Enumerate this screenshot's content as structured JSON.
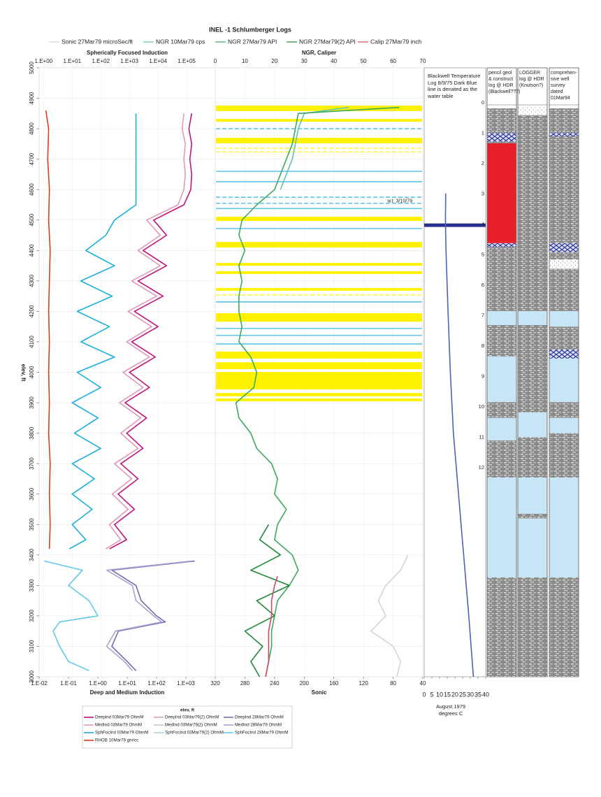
{
  "chart_data": {
    "type": "well-log",
    "title": "INEL -1 Schlumberger Logs",
    "y_label": "elev, ft",
    "ylim": [
      3000,
      5000
    ],
    "yticks": [
      3000,
      3100,
      3200,
      3300,
      3400,
      3500,
      3600,
      3700,
      3800,
      3900,
      4000,
      4100,
      4200,
      4300,
      4400,
      4500,
      4600,
      4700,
      4800,
      4900,
      5000
    ],
    "grid": true,
    "legend_top": [
      {
        "name": "Sonic 27Mar79 microSec/ft",
        "color": "#d4d4d4",
        "track": 1,
        "axis": "bottom",
        "depths": [
          3400,
          3350,
          3300,
          3250,
          3200,
          3150,
          3100,
          3050,
          3000
        ],
        "values": [
          60,
          70,
          90,
          100,
          90,
          110,
          80,
          70,
          75
        ]
      },
      {
        "name": "NGR 10Mar79 cps",
        "color": "#5fc2b4",
        "track": 1,
        "axis": "top",
        "depths": [
          4870,
          4850,
          4800,
          4750,
          4700,
          4650,
          4600
        ],
        "values": [
          45,
          30,
          28,
          27,
          26,
          24,
          22
        ]
      },
      {
        "name": "NGR 27Mar79 API",
        "color": "#3caa5a",
        "track": 1,
        "axis": "top",
        "depths": [
          4870,
          4850,
          4800,
          4750,
          4700,
          4650,
          4600,
          4550,
          4500,
          4450,
          4400,
          4350,
          4300,
          4250,
          4200,
          4150,
          4100,
          4050,
          4000,
          3950,
          3900,
          3850,
          3800,
          3750,
          3700,
          3650,
          3600,
          3550,
          3500,
          3450,
          3400,
          3350,
          3300,
          3250,
          3200,
          3150,
          3100,
          3050,
          3000
        ],
        "values": [
          62,
          28,
          27,
          26,
          24,
          22,
          20,
          14,
          9,
          8,
          10,
          8,
          9,
          8,
          8,
          9,
          8,
          12,
          14,
          13,
          7,
          8,
          12,
          14,
          19,
          21,
          20,
          24,
          21,
          20,
          26,
          28,
          25,
          21,
          20,
          19,
          19,
          18,
          17
        ]
      },
      {
        "name": "NGR 27Mar79(2) API",
        "color": "#1e8a3a",
        "track": 1,
        "axis": "top",
        "depths": [
          3500,
          3450,
          3400,
          3350,
          3300,
          3250,
          3200,
          3150,
          3100,
          3050,
          3000
        ],
        "values": [
          18,
          15,
          22,
          12,
          25,
          14,
          20,
          10,
          16,
          12,
          15
        ]
      },
      {
        "name": "Calip 27Mar79 inch",
        "color": "#cc4a60",
        "track": 1,
        "axis": "top",
        "depths": [
          3330,
          3300,
          3250,
          3200,
          3150,
          3100,
          3050,
          3000
        ],
        "values": [
          21,
          20,
          19,
          19,
          18,
          18,
          18,
          17
        ]
      }
    ],
    "legend_bottom_title": "elev, ft",
    "legend_bottom": [
      {
        "name": "Deepind 03Mar79 OhmM",
        "color": "#c0147c",
        "track": 0,
        "axis": "top",
        "depths": [
          4850,
          4800,
          4750,
          4700,
          4650,
          4600,
          4550,
          4500,
          4450,
          4400,
          4350,
          4300,
          4250,
          4200,
          4150,
          4100,
          4050,
          4000,
          3950,
          3900,
          3850,
          3800,
          3750,
          3700,
          3650,
          3600,
          3550,
          3500,
          3450,
          3420
        ],
        "values": [
          150000,
          120000,
          150000,
          130000,
          150000,
          140000,
          80000,
          7000,
          20000,
          3000,
          20000,
          2000,
          15000,
          1500,
          10000,
          1200,
          8000,
          1000,
          5000,
          700,
          4000,
          800,
          3000,
          500,
          2000,
          400,
          1500,
          300,
          800,
          200
        ]
      },
      {
        "name": "MedInd 03Mar79 OhmM",
        "color": "#e098b8",
        "track": 0,
        "axis": "top",
        "depths": [
          4850,
          4800,
          4750,
          4700,
          4650,
          4600,
          4550,
          4500,
          4450,
          4400,
          4350,
          4300,
          4250,
          4200,
          4150,
          4100,
          4050,
          4000,
          3950,
          3900,
          3850,
          3800,
          3750,
          3700,
          3650,
          3600,
          3550,
          3500,
          3450,
          3420
        ],
        "values": [
          80000,
          70000,
          90000,
          80000,
          90000,
          80000,
          50000,
          4000,
          12000,
          2000,
          12000,
          1200,
          9000,
          900,
          6000,
          800,
          5000,
          600,
          3000,
          450,
          2500,
          500,
          2000,
          300,
          1200,
          250,
          900,
          200,
          500,
          150
        ]
      },
      {
        "name": "SphFocInd 03Mar79 OhmM",
        "color": "#1ab0dc",
        "track": 0,
        "axis": "top",
        "depths": [
          4850,
          4800,
          4750,
          4700,
          4650,
          4600,
          4550,
          4500,
          4450,
          4400,
          4350,
          4300,
          4250,
          4200,
          4150,
          4100,
          4050,
          4000,
          3950,
          3900,
          3850,
          3800,
          3750,
          3700,
          3650,
          3600,
          3550,
          3500,
          3450,
          3420
        ],
        "values": [
          1700,
          1700,
          1700,
          1700,
          1700,
          1700,
          1700,
          300,
          150,
          30,
          300,
          20,
          250,
          15,
          200,
          20,
          300,
          15,
          100,
          10,
          80,
          12,
          100,
          10,
          60,
          10,
          50,
          10,
          30,
          8
        ]
      },
      {
        "name": "RHOB 10Mar79 gm/cc",
        "color": "#d04020",
        "track": 0,
        "axis": "top",
        "depths": [
          4860,
          4800,
          4700,
          4600,
          4500,
          4400,
          4300,
          4200,
          4100,
          4000,
          3900,
          3800,
          3700,
          3600,
          3500,
          3420
        ],
        "values": [
          1.2,
          1.5,
          1.4,
          1.6,
          1.5,
          1.7,
          1.6,
          1.5,
          1.6,
          1.5,
          1.6,
          1.5,
          1.7,
          1.6,
          1.7,
          1.6
        ]
      },
      {
        "name": "DeepInd 03Mar79(2) OhmM",
        "color": "#d8a0b4"
      },
      {
        "name": "MedInd 03Mar79(2) OhmM",
        "color": "#c4c4cc"
      },
      {
        "name": "SphFocInd 03Mar79(2) OhmM",
        "color": "#a8d4e4"
      },
      {
        "name": "DeepInd 28Mar79 OhmM",
        "color": "#7070b0",
        "track": 0,
        "axis": "bottom",
        "depths": [
          3380,
          3350,
          3300,
          3250,
          3200,
          3180,
          3150,
          3100,
          3050,
          3020
        ],
        "values": [
          2000,
          3,
          20,
          30,
          100,
          200,
          5,
          3,
          10,
          20
        ]
      },
      {
        "name": "MedInd 28Mar79 OhmM",
        "color": "#b0a0d0",
        "track": 0,
        "axis": "bottom",
        "depths": [
          3380,
          3350,
          3300,
          3250,
          3200,
          3180,
          3150,
          3100,
          3050,
          3020
        ],
        "values": [
          1500,
          2,
          15,
          20,
          80,
          150,
          4,
          2,
          8,
          15
        ]
      },
      {
        "name": "SphFocInd 28Mar79 OhmM",
        "color": "#60c8e8",
        "track": 0,
        "axis": "bottom",
        "depths": [
          3380,
          3350,
          3300,
          3250,
          3200,
          3180,
          3150,
          3100,
          3050,
          3020
        ],
        "values": [
          0.015,
          0.3,
          0.1,
          0.5,
          1,
          0.05,
          0.03,
          0.05,
          0.1,
          0.5
        ]
      }
    ],
    "tracks": [
      {
        "top_label": "Spherically Focused Induction",
        "top_log": true,
        "top_xlim": [
          0.7,
          1000000
        ],
        "top_xticks": [
          {
            "value": 1,
            "label": "1.E+00"
          },
          {
            "value": 10,
            "label": "1.E+01"
          },
          {
            "value": 100,
            "label": "1.E+02"
          },
          {
            "value": 1000,
            "label": "1.E+03"
          },
          {
            "value": 10000,
            "label": "1.E+04"
          },
          {
            "value": 100000,
            "label": "1.E+05"
          }
        ],
        "bottom_label": "Deep and Medium Induction",
        "bottom_log": true,
        "bottom_xlim": [
          0.01,
          10000
        ],
        "bottom_xticks": [
          {
            "value": 0.01,
            "label": "1.E-02"
          },
          {
            "value": 0.1,
            "label": "1.E-01"
          },
          {
            "value": 1,
            "label": "1.E+00"
          },
          {
            "value": 10,
            "label": "1.E+01"
          },
          {
            "value": 100,
            "label": "1.E+02"
          },
          {
            "value": 1000,
            "label": "1.E+03"
          }
        ]
      },
      {
        "top_label": "NGR, Caliper",
        "top_xlim": [
          0,
          70
        ],
        "top_xticks": [
          0,
          10,
          20,
          30,
          40,
          50,
          60,
          70
        ],
        "bottom_label": "Sonic",
        "bottom_xlim": [
          320,
          40
        ],
        "bottom_xticks": [
          320,
          280,
          240,
          200,
          160,
          120,
          80,
          40
        ],
        "band_color": "#fff200",
        "line_color": "#2ab0e0",
        "bands": [
          [
            4876,
            4858
          ],
          [
            4832,
            4823
          ],
          [
            4770,
            4752
          ],
          [
            4511,
            4497
          ],
          [
            4428,
            4410
          ],
          [
            4359,
            4350
          ],
          [
            4332,
            4323
          ],
          [
            4277,
            4268
          ],
          [
            4194,
            4166
          ],
          [
            4068,
            4045
          ],
          [
            4033,
            4010
          ],
          [
            4001,
            3944
          ],
          [
            3932,
            3921
          ],
          [
            3914,
            3905
          ]
        ],
        "solid_lines": [
          4660,
          4626,
          4538,
          4472,
          4231,
          4144,
          4121,
          4093
        ],
        "dashed_lines": [
          4800,
          4575,
          4555
        ],
        "dashed_band_lines": [
          4736,
          4724,
          4254
        ],
        "annotation": {
          "text": "w.t. 3/10/79",
          "depth": 4562
        }
      },
      {
        "note": "Blackwell Temperature Log 8/9/75 Dark Blue line is denated as the water table",
        "bottom_label": "August 1979 degrees C",
        "bottom_xlim": [
          0,
          40
        ],
        "bottom_xticks": [
          0,
          5,
          10,
          15,
          20,
          25,
          30,
          35,
          40
        ],
        "curves": [
          {
            "color": "#5060b0",
            "depths": [
              4587,
              4500,
              4400,
              4200,
              4000,
              3800,
              3500,
              3200,
              3000
            ],
            "values": [
              14,
              13.8,
              14.2,
              15.5,
              17,
              19,
              24,
              29,
              32
            ]
          }
        ],
        "water_table": {
          "depth": 4483,
          "color": "#27308f"
        }
      }
    ],
    "ruler_ticks": [
      0,
      1,
      2,
      3,
      4,
      5,
      6,
      7,
      8,
      9,
      10,
      11,
      12
    ],
    "litho_columns": [
      {
        "title": "pencil geol & construct log @ HDR (Blackwell???)",
        "intervals": [
          [
            4867,
            4786,
            "basalt"
          ],
          [
            4786,
            4757,
            "rubble"
          ],
          [
            4757,
            4752,
            "basalt"
          ],
          [
            4752,
            4424,
            "red"
          ],
          [
            4424,
            4412,
            "rubble"
          ],
          [
            4412,
            4201,
            "basalt"
          ],
          [
            4201,
            4155,
            "sediment"
          ],
          [
            4155,
            4052,
            "basalt"
          ],
          [
            4052,
            3902,
            "sediment"
          ],
          [
            3902,
            3850,
            "basalt"
          ],
          [
            3850,
            3776,
            "sediment"
          ],
          [
            3776,
            3654,
            "basalt"
          ],
          [
            3654,
            3326,
            "sediment"
          ],
          [
            3326,
            3000,
            "basalt"
          ]
        ]
      },
      {
        "title": "LOGGER log @ HDR (Knutson?)",
        "intervals": [
          [
            4874,
            4844,
            "sand"
          ],
          [
            4844,
            4201,
            "basalt"
          ],
          [
            4201,
            4155,
            "sediment"
          ],
          [
            4155,
            3868,
            "basalt"
          ],
          [
            3868,
            3787,
            "sediment"
          ],
          [
            3787,
            3654,
            "basalt"
          ],
          [
            3654,
            3535,
            "sediment"
          ],
          [
            3535,
            3520,
            "basalt"
          ],
          [
            3520,
            3326,
            "sediment"
          ],
          [
            3326,
            3000,
            "basalt"
          ]
        ]
      },
      {
        "title": "comprehen-sive well survey dated 01Mar94",
        "intervals": [
          [
            4867,
            4786,
            "basalt"
          ],
          [
            4786,
            4775,
            "rubble"
          ],
          [
            4775,
            4424,
            "basalt"
          ],
          [
            4424,
            4395,
            "rubble"
          ],
          [
            4395,
            4370,
            "basalt"
          ],
          [
            4370,
            4340,
            "sand"
          ],
          [
            4340,
            4201,
            "basalt"
          ],
          [
            4201,
            4150,
            "sediment"
          ],
          [
            4150,
            4075,
            "basalt"
          ],
          [
            4075,
            4045,
            "rubble"
          ],
          [
            4045,
            3902,
            "sediment"
          ],
          [
            3902,
            3850,
            "basalt"
          ],
          [
            3850,
            3800,
            "sediment"
          ],
          [
            3800,
            3654,
            "basalt"
          ],
          [
            3654,
            3326,
            "sediment"
          ],
          [
            3326,
            3000,
            "basalt"
          ]
        ]
      }
    ]
  }
}
